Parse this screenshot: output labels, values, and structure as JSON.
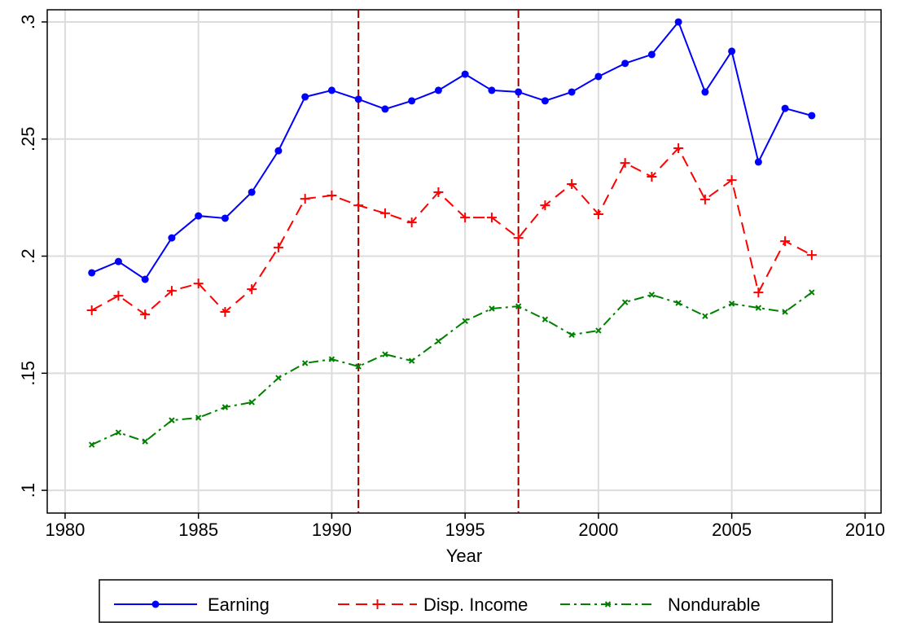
{
  "chart_data": {
    "type": "line",
    "x_label": "Year",
    "x": [
      1981,
      1982,
      1983,
      1984,
      1985,
      1986,
      1987,
      1988,
      1989,
      1990,
      1991,
      1992,
      1993,
      1994,
      1995,
      1996,
      1997,
      1998,
      1999,
      2000,
      2001,
      2002,
      2003,
      2004,
      2005,
      2006,
      2007,
      2008
    ],
    "series": [
      {
        "name": "Earning",
        "color": "#0000ff",
        "dash": "solid",
        "marker": "circle",
        "values": [
          0.1929,
          0.1977,
          0.1901,
          0.2078,
          0.2172,
          0.2162,
          0.2273,
          0.245,
          0.268,
          0.2708,
          0.267,
          0.2628,
          0.2663,
          0.2708,
          0.2777,
          0.2708,
          0.2701,
          0.2663,
          0.2701,
          0.2767,
          0.2823,
          0.2861,
          0.3,
          0.2701,
          0.2875,
          0.2402,
          0.2631,
          0.26
        ]
      },
      {
        "name": "Disp. Income",
        "color": "#ff0000",
        "dash": "dashed",
        "marker": "plus",
        "values": [
          0.1769,
          0.1831,
          0.1751,
          0.1852,
          0.1883,
          0.1762,
          0.1859,
          0.2037,
          0.2245,
          0.2259,
          0.2217,
          0.2183,
          0.2144,
          0.2273,
          0.2165,
          0.2165,
          0.2078,
          0.2217,
          0.2308,
          0.2179,
          0.2398,
          0.2339,
          0.2461,
          0.2242,
          0.2325,
          0.1845,
          0.2064,
          0.2005
        ]
      },
      {
        "name": "Nondurable",
        "color": "#008000",
        "dash": "dashdot",
        "marker": "x",
        "values": [
          0.1195,
          0.1247,
          0.1209,
          0.1299,
          0.131,
          0.1355,
          0.1376,
          0.148,
          0.1543,
          0.156,
          0.1529,
          0.1581,
          0.1553,
          0.1637,
          0.1723,
          0.1776,
          0.1786,
          0.173,
          0.1664,
          0.1682,
          0.1803,
          0.1835,
          0.18,
          0.1744,
          0.1797,
          0.1779,
          0.1762,
          0.1845
        ]
      }
    ],
    "vlines": [
      1991,
      1997
    ],
    "vline_color": "#990000",
    "xlim": [
      1979.33,
      2010.6
    ],
    "xticks": [
      1980,
      1985,
      1990,
      1995,
      2000,
      2005,
      2010
    ],
    "ylim": [
      0.0903,
      0.3052
    ],
    "yticks": [
      {
        "value": 0.1,
        "label": ".1"
      },
      {
        "value": 0.15,
        "label": ".15"
      },
      {
        "value": 0.2,
        "label": ".2"
      },
      {
        "value": 0.25,
        "label": ".25"
      },
      {
        "value": 0.3,
        "label": ".3"
      }
    ],
    "grid": true,
    "legend": "bottom"
  }
}
